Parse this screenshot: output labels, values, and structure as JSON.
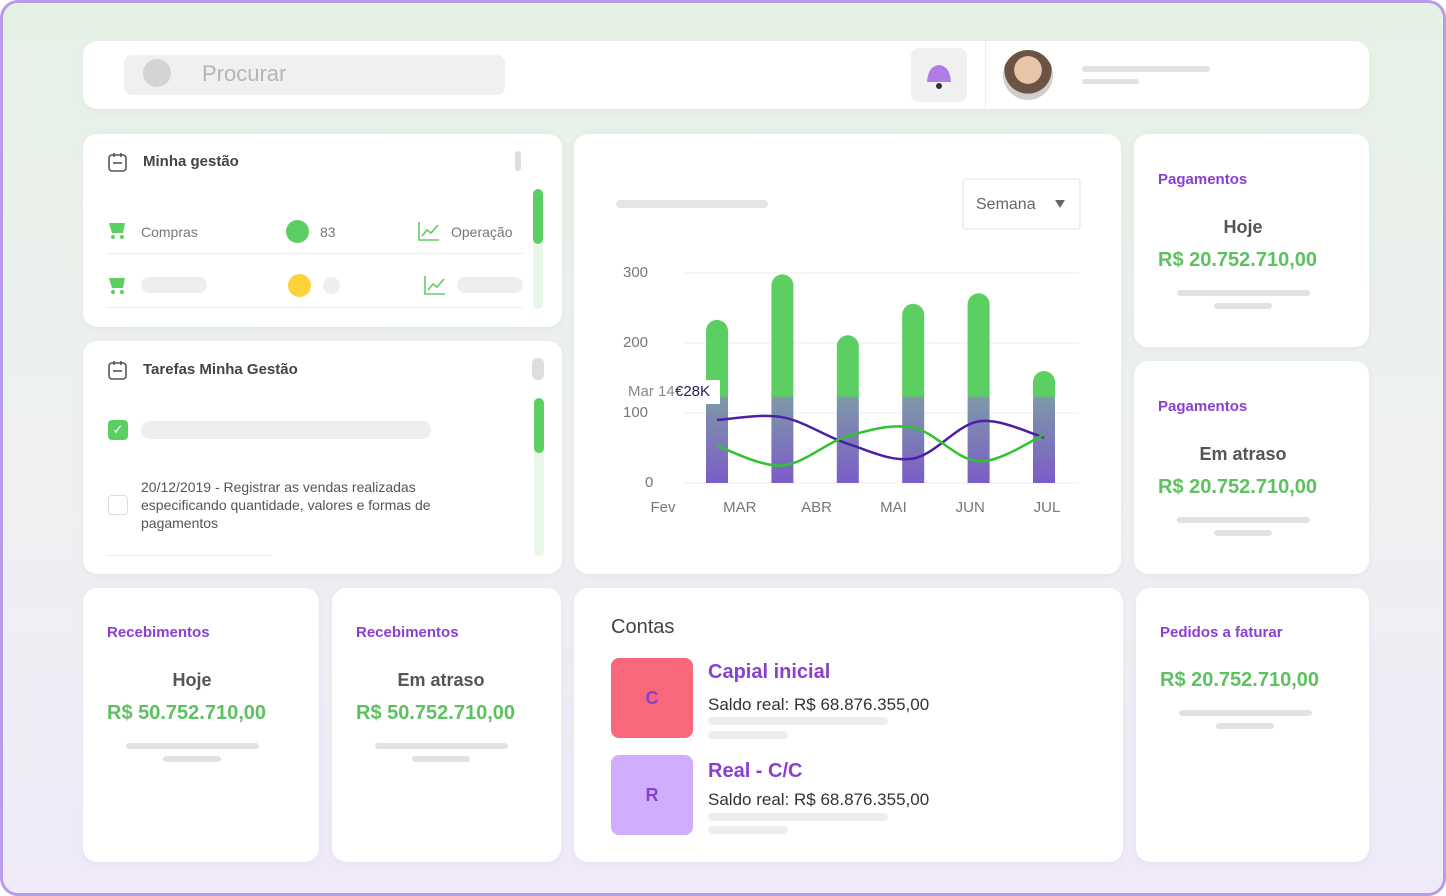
{
  "search": {
    "placeholder": "Procurar"
  },
  "management": {
    "title": "Minha gestão",
    "rows": [
      {
        "label": "Compras",
        "count": 83,
        "link": "Operação"
      }
    ]
  },
  "tasks": {
    "title": "Tarefas Minha Gestão",
    "items": [
      "20/12/2019 - Registrar as vendas realizadas especificando quantidade, valores e formas de pagamentos"
    ]
  },
  "chart_data": {
    "type": "bar",
    "dropdown": "Semana",
    "tooltip": {
      "label": "Mar 14",
      "value": "€28K"
    },
    "categories": [
      "Fev",
      "MAR",
      "ABR",
      "MAI",
      "JUN",
      "JUL"
    ],
    "series": [
      {
        "type": "bar",
        "color": "#5ccf63",
        "values": [
          233,
          298,
          211,
          256,
          271,
          160
        ]
      },
      {
        "type": "line",
        "color": "#4b1fa8",
        "values": [
          90,
          94,
          56,
          35,
          88,
          65
        ]
      },
      {
        "type": "line",
        "color": "#2fc42f",
        "values": [
          53,
          25,
          67,
          79,
          31,
          69
        ]
      }
    ],
    "ylim": [
      0,
      300
    ],
    "yticks": [
      0,
      100,
      200,
      300
    ],
    "grid": true
  },
  "payments": [
    {
      "title": "Pagamentos",
      "subtitle": "Hoje",
      "amount": "R$ 20.752.710,00"
    },
    {
      "title": "Pagamentos",
      "subtitle": "Em atraso",
      "amount": "R$ 20.752.710,00"
    }
  ],
  "receipts": [
    {
      "title": "Recebimentos",
      "subtitle": "Hoje",
      "amount": "R$ 50.752.710,00"
    },
    {
      "title": "Recebimentos",
      "subtitle": "Em atraso",
      "amount": "R$ 50.752.710,00"
    }
  ],
  "accounts": {
    "title": "Contas",
    "items": [
      {
        "initial": "C",
        "name": "Capial inicial",
        "balance": "Saldo real: R$ 68.876.355,00"
      },
      {
        "initial": "R",
        "name": "Real - C/C",
        "balance": "Saldo real: R$ 68.876.355,00"
      }
    ]
  },
  "orders": {
    "title": "Pedidos a faturar",
    "amount": "R$ 20.752.710,00"
  }
}
